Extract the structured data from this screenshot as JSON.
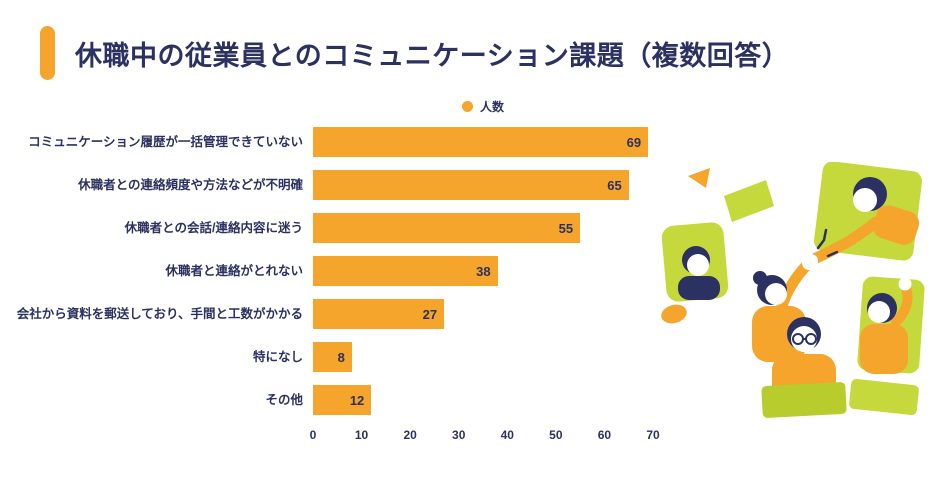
{
  "title": {
    "text": "休職中の従業員とのコミュニケーション課題（複数回答）"
  },
  "legend": {
    "label": "人数"
  },
  "colors": {
    "navy": "#2b3160",
    "orange": "#f5a42c",
    "green": "#c6d93c"
  },
  "chart_data": {
    "type": "bar",
    "orientation": "horizontal",
    "title": "休職中の従業員とのコミュニケーション課題（複数回答）",
    "legend_entries": [
      "人数"
    ],
    "legend_position": "top",
    "grid": false,
    "categories": [
      "コミュニケーション履歴が一括管理できていない",
      "休職者との連絡頻度や方法などが不明確",
      "休職者との会話/連絡内容に迷う",
      "休職者と連絡がとれない",
      "会社から資料を郵送しており、手間と工数がかかる",
      "特になし",
      "その他"
    ],
    "values": [
      69,
      65,
      55,
      38,
      27,
      8,
      12
    ],
    "xlabel": "",
    "ylabel": "",
    "xlim": [
      0,
      70
    ],
    "xticks": [
      0,
      10,
      20,
      30,
      40,
      50,
      60,
      70
    ]
  },
  "illustration": {
    "name": "teamwork-highfive-illustration"
  }
}
